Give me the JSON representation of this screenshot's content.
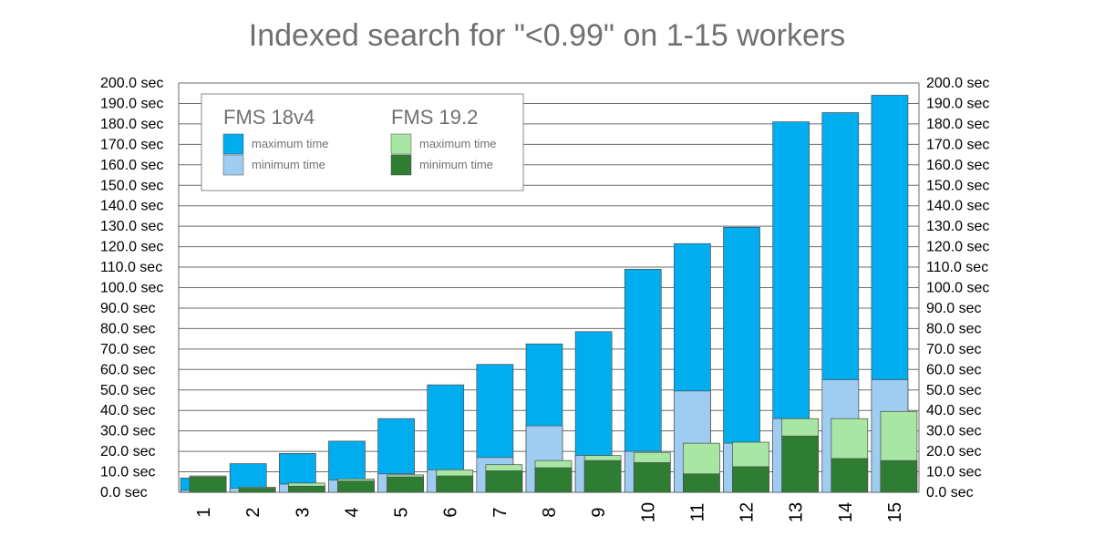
{
  "chart_data": {
    "type": "bar",
    "title": "Indexed search for \"<0.99\" on 1-15 workers",
    "categories": [
      "1",
      "2",
      "3",
      "4",
      "5",
      "6",
      "7",
      "8",
      "9",
      "10",
      "11",
      "12",
      "13",
      "14",
      "15"
    ],
    "ylim": [
      0,
      200
    ],
    "ytick_step": 10,
    "ytick_format_suffix": " sec",
    "grid": true,
    "legend_position": "top-left",
    "groups": [
      {
        "name": "FMS 18v4",
        "series": [
          {
            "name": "maximum time",
            "color": "#00aeef",
            "values": [
              7,
              14,
              19,
              25,
              36,
              52.5,
              62.5,
              72.5,
              78.5,
              109,
              121.5,
              129.5,
              181,
              185.5,
              194
            ]
          },
          {
            "name": "minimum time",
            "color": "#9fcdf2",
            "values": [
              1,
              2,
              4,
              6,
              9,
              11,
              17,
              32.5,
              18,
              20,
              49.5,
              24,
              36,
              55,
              55
            ]
          }
        ]
      },
      {
        "name": "FMS 19.2",
        "series": [
          {
            "name": "maximum time",
            "color": "#a8e6a3",
            "values": [
              8,
              2.5,
              4.5,
              6.5,
              8.5,
              11,
              13.5,
              15.5,
              18,
              19.5,
              24,
              24.5,
              36,
              36,
              39.5
            ]
          },
          {
            "name": "minimum time",
            "color": "#2e7d32",
            "values": [
              7.5,
              2,
              3,
              5.5,
              7.5,
              8,
              10.5,
              12,
              15.5,
              14.5,
              9,
              12.5,
              27.5,
              16.5,
              15.5
            ]
          }
        ]
      }
    ]
  }
}
